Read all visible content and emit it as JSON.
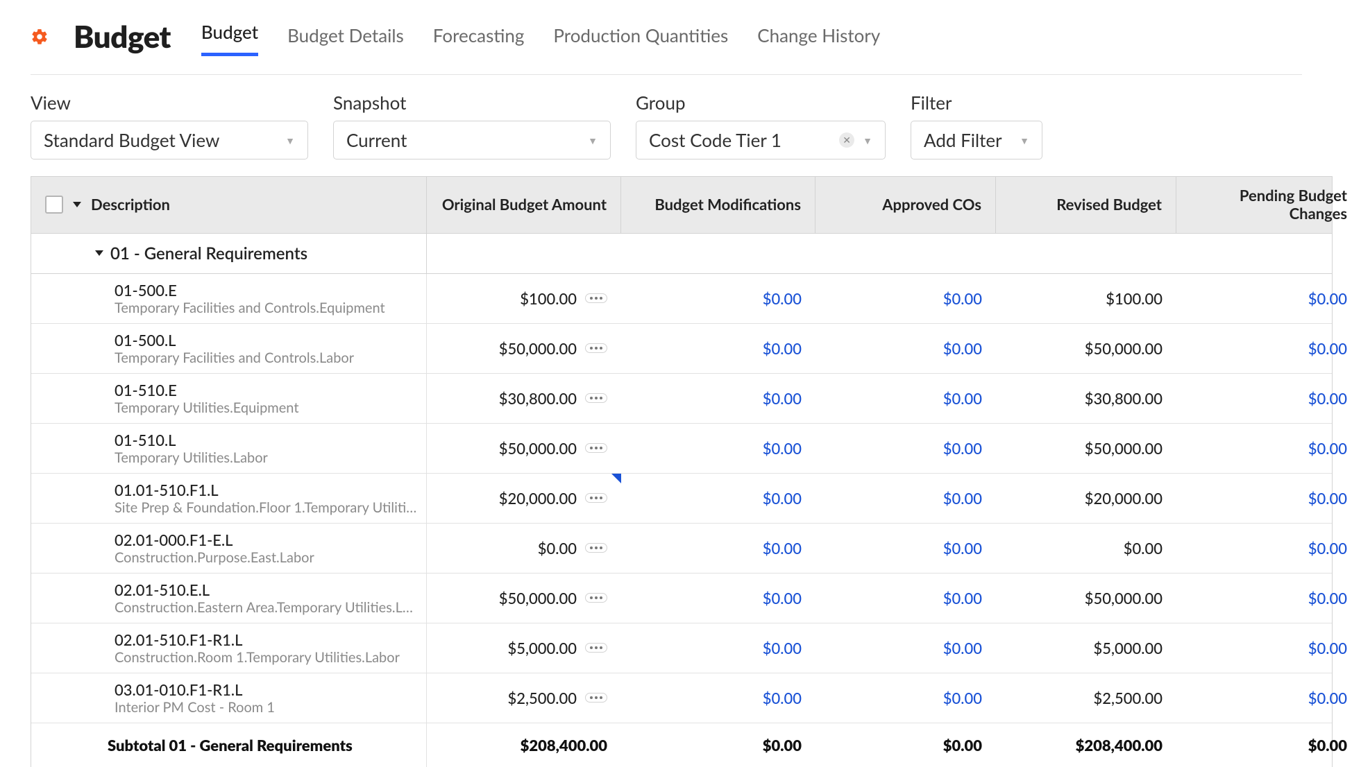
{
  "page_title": "Budget",
  "tabs": [
    "Budget",
    "Budget Details",
    "Forecasting",
    "Production Quantities",
    "Change History"
  ],
  "active_tab_index": 0,
  "controls": {
    "view": {
      "label": "View",
      "value": "Standard Budget View"
    },
    "snap": {
      "label": "Snapshot",
      "value": "Current"
    },
    "group": {
      "label": "Group",
      "value": "Cost Code Tier 1",
      "clearable": true
    },
    "filter": {
      "label": "Filter",
      "value": "Add Filter"
    }
  },
  "columns": [
    "Description",
    "Original Budget Amount",
    "Budget Modifications",
    "Approved COs",
    "Revised Budget",
    "Pending Budget Changes"
  ],
  "group_header": "01 - General Requirements",
  "rows": [
    {
      "code": "01-500.E",
      "desc": "Temporary Facilities and Controls.Equipment",
      "orig": "$100.00",
      "mods": "$0.00",
      "cos": "$0.00",
      "rev": "$100.00",
      "pend": "$0.00",
      "note": false
    },
    {
      "code": "01-500.L",
      "desc": "Temporary Facilities and Controls.Labor",
      "orig": "$50,000.00",
      "mods": "$0.00",
      "cos": "$0.00",
      "rev": "$50,000.00",
      "pend": "$0.00",
      "note": false
    },
    {
      "code": "01-510.E",
      "desc": "Temporary Utilities.Equipment",
      "orig": "$30,800.00",
      "mods": "$0.00",
      "cos": "$0.00",
      "rev": "$30,800.00",
      "pend": "$0.00",
      "note": false
    },
    {
      "code": "01-510.L",
      "desc": "Temporary Utilities.Labor",
      "orig": "$50,000.00",
      "mods": "$0.00",
      "cos": "$0.00",
      "rev": "$50,000.00",
      "pend": "$0.00",
      "note": false
    },
    {
      "code": "01.01-510.F1.L",
      "desc": "Site Prep & Foundation.Floor 1.Temporary Utiliti…",
      "orig": "$20,000.00",
      "mods": "$0.00",
      "cos": "$0.00",
      "rev": "$20,000.00",
      "pend": "$0.00",
      "note": true
    },
    {
      "code": "02.01-000.F1-E.L",
      "desc": "Construction.Purpose.East.Labor",
      "orig": "$0.00",
      "mods": "$0.00",
      "cos": "$0.00",
      "rev": "$0.00",
      "pend": "$0.00",
      "note": false
    },
    {
      "code": "02.01-510.E.L",
      "desc": "Construction.Eastern Area.Temporary Utilities.L…",
      "orig": "$50,000.00",
      "mods": "$0.00",
      "cos": "$0.00",
      "rev": "$50,000.00",
      "pend": "$0.00",
      "note": false
    },
    {
      "code": "02.01-510.F1-R1.L",
      "desc": "Construction.Room 1.Temporary Utilities.Labor",
      "orig": "$5,000.00",
      "mods": "$0.00",
      "cos": "$0.00",
      "rev": "$5,000.00",
      "pend": "$0.00",
      "note": false
    },
    {
      "code": "03.01-010.F1-R1.L",
      "desc": "Interior PM Cost - Room 1",
      "orig": "$2,500.00",
      "mods": "$0.00",
      "cos": "$0.00",
      "rev": "$2,500.00",
      "pend": "$0.00",
      "note": false
    }
  ],
  "subtotal": {
    "label": "Subtotal 01 - General Requirements",
    "orig": "$208,400.00",
    "mods": "$0.00",
    "cos": "$0.00",
    "rev": "$208,400.00",
    "pend": "$0.00"
  },
  "colors": {
    "accent": "#f55a1f",
    "link": "#1a52d6",
    "tab_underline": "#2b62ff"
  }
}
